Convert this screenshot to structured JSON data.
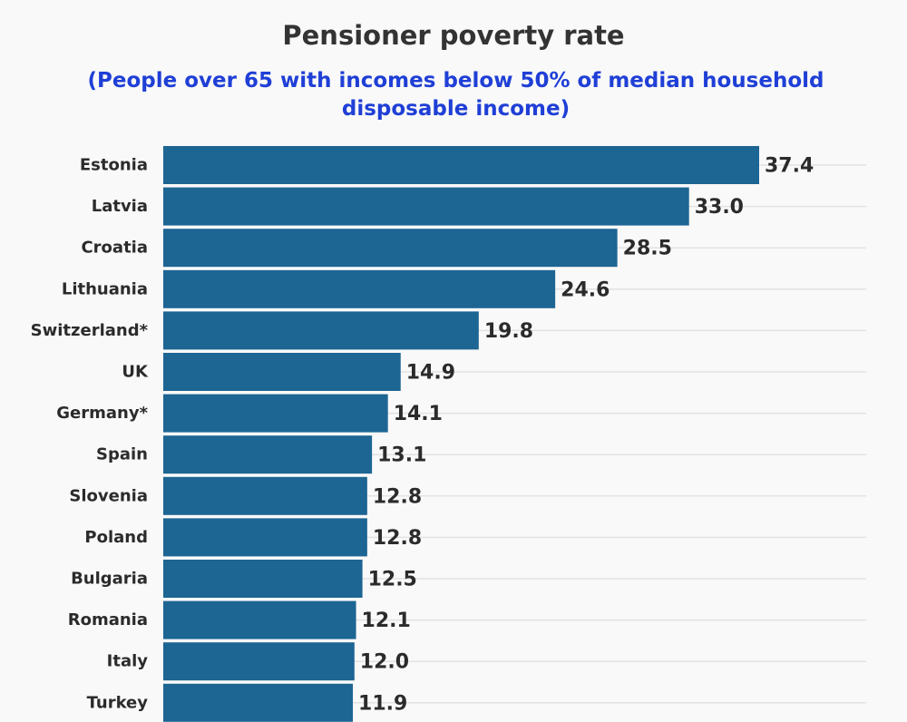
{
  "chart_data": {
    "type": "bar",
    "orientation": "horizontal",
    "title": "Pensioner poverty rate",
    "subtitle": "(People over 65 with incomes below 50% of median household disposable income)",
    "categories": [
      "Estonia",
      "Latvia",
      "Croatia",
      "Lithuania",
      "Switzerland*",
      "UK",
      "Germany*",
      "Spain",
      "Slovenia",
      "Poland",
      "Bulgaria",
      "Romania",
      "Italy",
      "Turkey"
    ],
    "values": [
      37.4,
      33.0,
      28.5,
      24.6,
      19.8,
      14.9,
      14.1,
      13.1,
      12.8,
      12.8,
      12.5,
      12.1,
      12.0,
      11.9
    ],
    "value_labels": [
      "37.4",
      "33.0",
      "28.5",
      "24.6",
      "19.8",
      "14.9",
      "14.1",
      "13.1",
      "12.8",
      "12.8",
      "12.5",
      "12.1",
      "12.0",
      "11.9"
    ],
    "xlim": [
      0,
      37.4
    ],
    "grid": true,
    "legend": "none",
    "colors": {
      "bar": "#1d6593",
      "grid": "#e2e2e2",
      "text": "#2b2b2b",
      "subtitle": "#1f3fd6",
      "background": "#f9f9f9"
    }
  }
}
